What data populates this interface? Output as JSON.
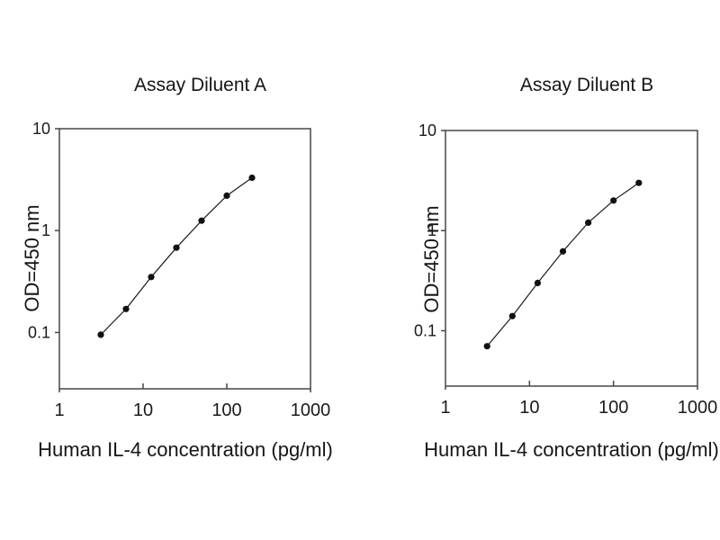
{
  "figure": {
    "background": "#ffffff",
    "text_color": "#1a1a1a",
    "axis_color": "#464646",
    "series_color": "#1c1c1c",
    "marker_color": "#111111"
  },
  "chart_data": [
    {
      "type": "line",
      "title": "Assay Diluent A",
      "xlabel": "Human IL-4 concentration (pg/ml)",
      "ylabel": "OD=450 nm",
      "x_scale": "log",
      "y_scale": "log",
      "xlim": [
        1,
        1000
      ],
      "ylim": [
        0.028,
        10
      ],
      "x_ticks": [
        1,
        10,
        100,
        1000
      ],
      "x_tick_labels": [
        "1",
        "10",
        "100",
        "1000"
      ],
      "y_ticks": [
        10,
        1,
        0.1
      ],
      "y_tick_labels": [
        "10",
        "1",
        "0.1"
      ],
      "grid": false,
      "legend": null,
      "marker": "filled-circle",
      "x": [
        3.125,
        6.25,
        12.5,
        25,
        50,
        100,
        200
      ],
      "y": [
        0.095,
        0.17,
        0.35,
        0.68,
        1.25,
        2.2,
        3.3
      ]
    },
    {
      "type": "line",
      "title": "Assay Diluent B",
      "xlabel": "Human IL-4 concentration (pg/ml)",
      "ylabel": "OD=450 nm",
      "x_scale": "log",
      "y_scale": "log",
      "xlim": [
        1,
        1000
      ],
      "ylim": [
        0.028,
        10
      ],
      "x_ticks": [
        1,
        10,
        100,
        1000
      ],
      "x_tick_labels": [
        "1",
        "10",
        "100",
        "1000"
      ],
      "y_ticks": [
        10,
        1,
        0.1
      ],
      "y_tick_labels": [
        "10",
        "1",
        "0.1"
      ],
      "grid": false,
      "legend": null,
      "marker": "filled-circle",
      "x": [
        3.125,
        6.25,
        12.5,
        25,
        50,
        100,
        200
      ],
      "y": [
        0.07,
        0.14,
        0.3,
        0.62,
        1.2,
        2.0,
        3.0
      ]
    }
  ]
}
